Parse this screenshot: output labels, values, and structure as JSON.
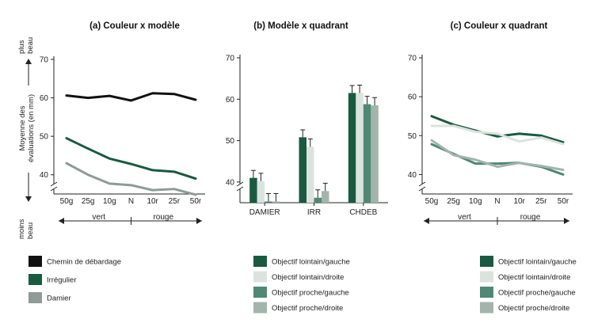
{
  "chart_data": [
    {
      "type": "line",
      "title": "(a) Couleur x modèle",
      "ylabel": "Moyenne des évaluations (en mm)",
      "ylabel_top": "plus beau",
      "ylabel_bottom": "moins beau",
      "categories": [
        "50g",
        "25g",
        "10g",
        "N",
        "10r",
        "25r",
        "50r"
      ],
      "direction_left": "vert",
      "direction_right": "rouge",
      "yticks": [
        40,
        50,
        60,
        70
      ],
      "ylim": [
        35,
        70
      ],
      "series": [
        {
          "name": "Chemin de débardage",
          "color": "#111111",
          "values": [
            60.6,
            60.0,
            60.5,
            59.3,
            61.2,
            61.0,
            59.5
          ]
        },
        {
          "name": "Irrégulier",
          "color": "#1a5a40",
          "values": [
            49.5,
            46.8,
            44.2,
            42.8,
            41.2,
            40.8,
            39.0
          ]
        },
        {
          "name": "Damier",
          "color": "#8e9b97",
          "values": [
            43.0,
            40.0,
            37.7,
            37.3,
            36.0,
            36.3,
            34.8
          ]
        }
      ]
    },
    {
      "type": "bar",
      "title": "(b) Modèle x quadrant",
      "categories": [
        "DAMIER",
        "IRR",
        "CHDEB"
      ],
      "yticks": [
        40,
        50,
        60,
        70
      ],
      "ylim": [
        35,
        70
      ],
      "series": [
        {
          "name": "Objectif lointain/gauche",
          "color": "#1a5a40",
          "values": [
            41.0,
            50.8,
            61.5
          ],
          "errors": [
            1.8,
            1.8,
            1.8
          ]
        },
        {
          "name": "Objectif lointain/droite",
          "color": "#dbe3df",
          "values": [
            40.2,
            48.5,
            61.5
          ],
          "errors": [
            1.9,
            1.9,
            1.9
          ]
        },
        {
          "name": "Objectif proche/gauche",
          "color": "#4f8874",
          "values": [
            35.3,
            36.2,
            58.8
          ],
          "errors": [
            1.9,
            1.9,
            1.9
          ]
        },
        {
          "name": "Objectif proche/droite",
          "color": "#a3b4ad",
          "values": [
            35.3,
            37.8,
            58.5
          ],
          "errors": [
            1.9,
            1.9,
            1.9
          ]
        }
      ]
    },
    {
      "type": "line",
      "title": "(c) Couleur x quadrant",
      "categories": [
        "50g",
        "25g",
        "10g",
        "N",
        "10r",
        "25r",
        "50r"
      ],
      "direction_left": "vert",
      "direction_right": "rouge",
      "yticks": [
        40,
        50,
        60,
        70
      ],
      "ylim": [
        35,
        70
      ],
      "series": [
        {
          "name": "Objectif lointain/gauche",
          "color": "#1a5a40",
          "values": [
            55.0,
            52.8,
            51.3,
            49.8,
            50.5,
            50.0,
            48.3
          ]
        },
        {
          "name": "Objectif lointain/droite",
          "color": "#dbe3df",
          "values": [
            52.5,
            52.5,
            51.0,
            50.5,
            48.5,
            49.5,
            47.8
          ]
        },
        {
          "name": "Objectif proche/gauche",
          "color": "#4f8874",
          "values": [
            47.8,
            45.3,
            42.8,
            42.8,
            43.0,
            42.0,
            40.0
          ]
        },
        {
          "name": "Objectif proche/droite",
          "color": "#a3b4ad",
          "values": [
            48.8,
            45.0,
            43.8,
            42.0,
            43.0,
            42.2,
            41.2
          ]
        }
      ]
    }
  ]
}
